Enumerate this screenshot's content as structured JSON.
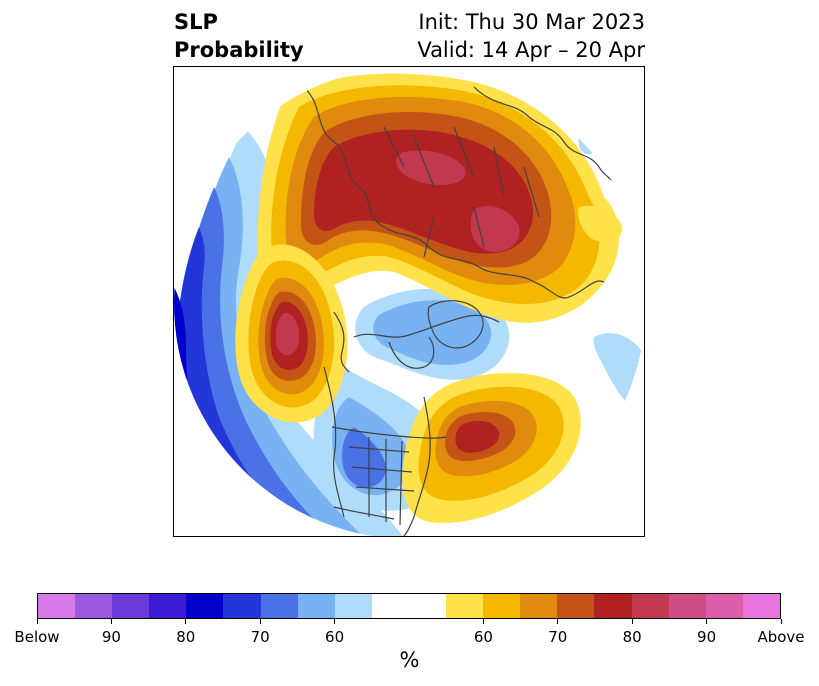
{
  "title": {
    "left_line1": "SLP",
    "left_line2": "Probability",
    "right_line1": "Init: Thu 30 Mar 2023",
    "right_line2": "Valid: 14 Apr – 20 Apr"
  },
  "colorbar": {
    "unit": "%",
    "segments": [
      {
        "color": "#d57ae8"
      },
      {
        "color": "#9b59e0"
      },
      {
        "color": "#6a3bd9"
      },
      {
        "color": "#3b1bd4"
      },
      {
        "color": "#0000cc"
      },
      {
        "color": "#2337d9"
      },
      {
        "color": "#4a72e6"
      },
      {
        "color": "#78b2f2"
      },
      {
        "color": "#b0dcfb"
      },
      {
        "color": "#ffffff"
      },
      {
        "color": "#ffffff"
      },
      {
        "color": "#ffe14a"
      },
      {
        "color": "#f5b800"
      },
      {
        "color": "#e08a0e"
      },
      {
        "color": "#c45415"
      },
      {
        "color": "#b02222"
      },
      {
        "color": "#c2384f"
      },
      {
        "color": "#cf4d85"
      },
      {
        "color": "#db5eaa"
      },
      {
        "color": "#e876de"
      }
    ],
    "tick_labels": [
      {
        "text": "Below",
        "index": 0
      },
      {
        "text": "90",
        "index": 2
      },
      {
        "text": "80",
        "index": 4
      },
      {
        "text": "70",
        "index": 6
      },
      {
        "text": "60",
        "index": 8
      },
      {
        "text": "60",
        "index": 12
      },
      {
        "text": "70",
        "index": 14
      },
      {
        "text": "80",
        "index": 16
      },
      {
        "text": "90",
        "index": 18
      },
      {
        "text": "Above",
        "index": 20
      }
    ]
  },
  "map": {
    "colors": {
      "below_60": "#b0dcfb",
      "below_70": "#78b2f2",
      "below_80": "#4a72e6",
      "below_90": "#2337d9",
      "below_max": "#0000cc",
      "above_60": "#ffe14a",
      "above_65": "#f5b800",
      "above_70": "#e08a0e",
      "above_75": "#c45415",
      "above_80": "#b02222",
      "above_85": "#c2384f",
      "border": "#404040"
    }
  }
}
